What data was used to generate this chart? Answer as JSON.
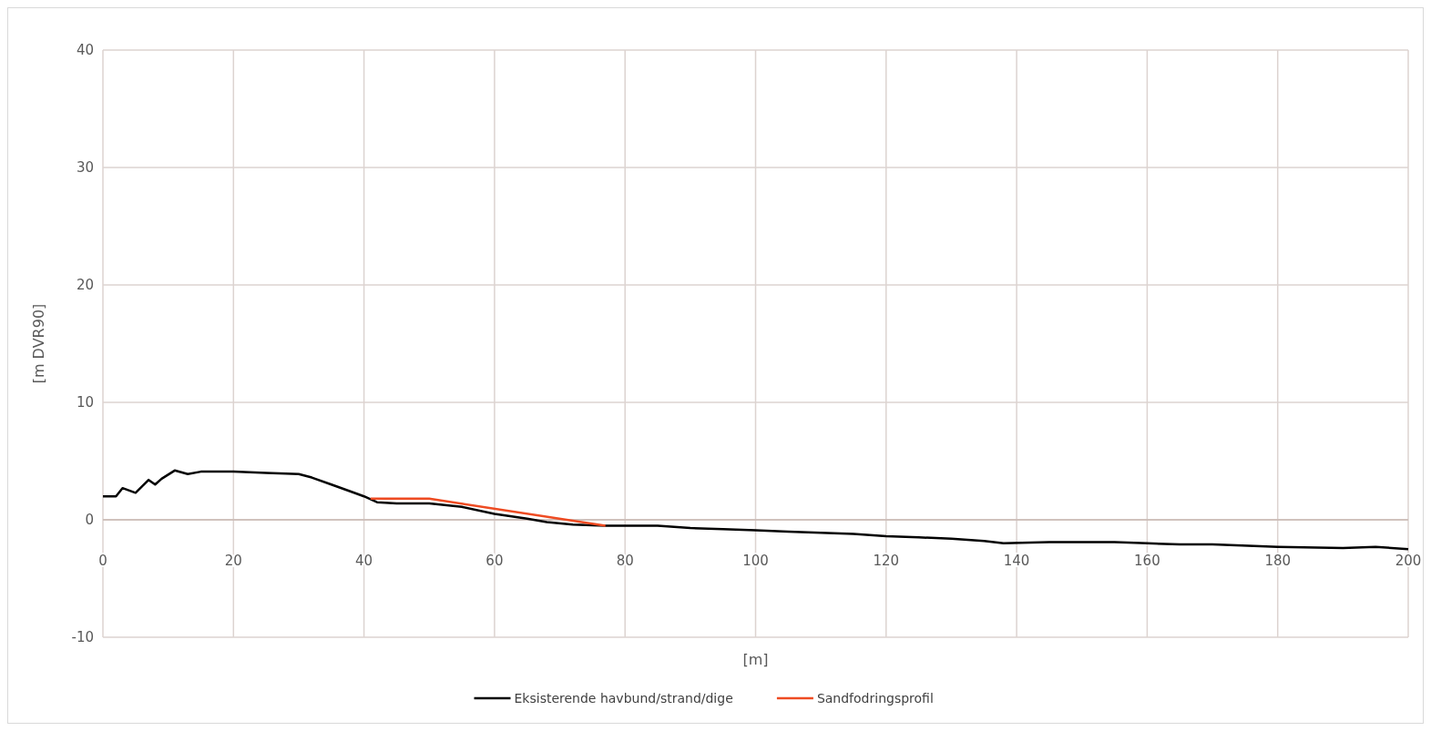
{
  "chart_data": {
    "type": "line",
    "xlabel": "[m]",
    "ylabel": "[m DVR90]",
    "xlim": [
      0,
      200
    ],
    "xticks": [
      0,
      20,
      40,
      60,
      80,
      100,
      120,
      140,
      160,
      180,
      200
    ],
    "ylim": [
      -10,
      40
    ],
    "yticks": [
      -10,
      0,
      10,
      20,
      30,
      40
    ],
    "grid": true,
    "legend": "bottom",
    "series": [
      {
        "name": "Eksisterende havbund/strand/dige",
        "color": "#000000",
        "x": [
          0,
          2,
          3,
          5,
          7,
          8,
          9,
          11,
          13,
          15,
          20,
          25,
          30,
          32,
          35,
          38,
          40,
          42,
          45,
          50,
          55,
          60,
          65,
          68,
          72,
          77,
          80,
          85,
          90,
          95,
          100,
          105,
          110,
          115,
          120,
          125,
          130,
          135,
          138,
          145,
          155,
          160,
          165,
          170,
          180,
          190,
          195,
          200
        ],
        "values": [
          2.0,
          2.0,
          2.7,
          2.3,
          3.4,
          3.0,
          3.5,
          4.2,
          3.9,
          4.1,
          4.1,
          4.0,
          3.9,
          3.6,
          3.0,
          2.4,
          2.0,
          1.5,
          1.4,
          1.4,
          1.1,
          0.5,
          0.1,
          -0.2,
          -0.4,
          -0.5,
          -0.5,
          -0.5,
          -0.7,
          -0.8,
          -0.9,
          -1.0,
          -1.1,
          -1.2,
          -1.4,
          -1.5,
          -1.6,
          -1.8,
          -2.0,
          -1.9,
          -1.9,
          -2.0,
          -2.1,
          -2.1,
          -2.3,
          -2.4,
          -2.3,
          -2.5
        ]
      },
      {
        "name": "Sandfodringsprofil",
        "color": "#ee4b22",
        "x": [
          41,
          50,
          77
        ],
        "values": [
          1.8,
          1.8,
          -0.5
        ]
      }
    ]
  }
}
